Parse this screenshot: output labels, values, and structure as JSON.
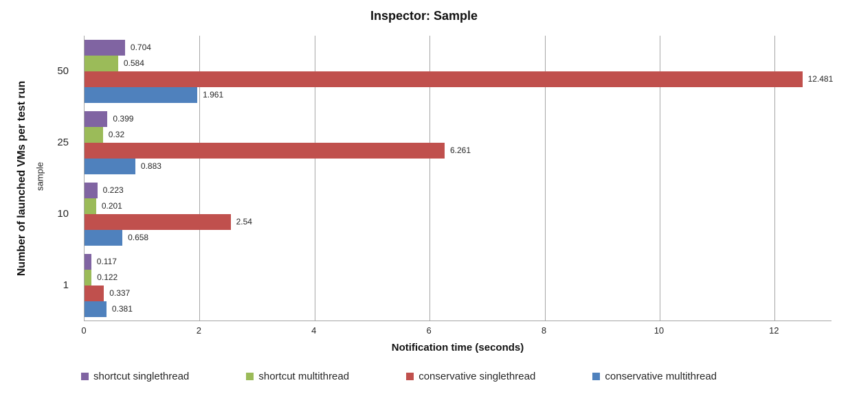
{
  "title": "Inspector: Sample",
  "chart_data": {
    "type": "bar",
    "orientation": "horizontal",
    "title": "Inspector: Sample",
    "xlabel": "Notification time (seconds)",
    "ylabel_outer": "Number of launched VMs per test run",
    "ylabel_inner": "sample",
    "categories": [
      "50",
      "25",
      "10",
      "1"
    ],
    "series": [
      {
        "name": "shortcut singlethread",
        "color": "#8064A2",
        "values": [
          0.704,
          0.399,
          0.223,
          0.117
        ],
        "labels": [
          "0.704",
          "0.399",
          "0.223",
          "0.117"
        ]
      },
      {
        "name": "shortcut multithread",
        "color": "#9BBB59",
        "values": [
          0.584,
          0.32,
          0.201,
          0.122
        ],
        "labels": [
          "0.584",
          "0.32",
          "0.201",
          "0.122"
        ]
      },
      {
        "name": "conservative singlethread",
        "color": "#C0504D",
        "values": [
          12.481,
          6.261,
          2.54,
          0.337
        ],
        "labels": [
          "12.481",
          "6.261",
          "2.54",
          "0.337"
        ]
      },
      {
        "name": "conservative multithread",
        "color": "#4F81BD",
        "values": [
          1.961,
          0.883,
          0.658,
          0.381
        ],
        "labels": [
          "1.961",
          "0.883",
          "0.658",
          "0.381"
        ]
      }
    ],
    "xlim": [
      0,
      13
    ],
    "xticks": [
      0,
      2,
      4,
      6,
      8,
      10,
      12
    ],
    "xtick_labels": [
      "0",
      "2",
      "4",
      "6",
      "8",
      "10",
      "12"
    ],
    "grid": true,
    "legend_position": "bottom"
  },
  "colors": {
    "gridline": "#a6a6a6",
    "axis": "#a6a6a6",
    "value_label": "#262626"
  }
}
